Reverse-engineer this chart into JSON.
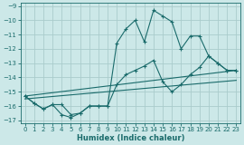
{
  "xlabel": "Humidex (Indice chaleur)",
  "bg_color": "#cce8e8",
  "line_color": "#1a6b6b",
  "grid_color": "#aacccc",
  "xlim": [
    -0.5,
    23.5
  ],
  "ylim": [
    -17.2,
    -8.8
  ],
  "yticks": [
    -17,
    -16,
    -15,
    -14,
    -13,
    -12,
    -11,
    -10,
    -9
  ],
  "xticks": [
    0,
    1,
    2,
    3,
    4,
    5,
    6,
    7,
    8,
    9,
    10,
    11,
    12,
    13,
    14,
    15,
    16,
    17,
    18,
    19,
    20,
    21,
    22,
    23
  ],
  "series": [
    {
      "x": [
        0,
        1,
        2,
        3,
        4,
        5,
        6,
        7,
        8,
        9,
        10,
        11,
        12,
        13,
        14,
        15,
        16,
        17,
        18,
        19,
        20,
        21,
        22,
        23
      ],
      "y": [
        -15.3,
        -15.8,
        -16.2,
        -15.9,
        -15.9,
        -16.6,
        -16.5,
        -16.0,
        -16.0,
        -16.0,
        -11.6,
        -10.6,
        -10.0,
        -11.5,
        -9.3,
        -9.7,
        -10.1,
        -12.0,
        -11.1,
        -11.1,
        -12.5,
        -13.0,
        -13.5,
        -13.5
      ]
    },
    {
      "x": [
        0,
        1,
        2,
        3,
        4,
        5,
        6,
        7,
        8,
        9,
        10,
        11,
        12,
        13,
        14,
        15,
        16,
        17,
        18,
        19,
        20,
        21,
        22,
        23
      ],
      "y": [
        -15.3,
        -15.8,
        -16.2,
        -15.9,
        -16.6,
        -16.8,
        -16.5,
        -16.0,
        -16.0,
        -16.0,
        -14.5,
        -13.8,
        -13.5,
        -13.2,
        -12.8,
        -14.3,
        -15.0,
        -14.5,
        -13.8,
        -13.3,
        -12.5,
        -13.0,
        -13.5,
        -13.5
      ]
    },
    {
      "x": [
        0,
        23
      ],
      "y": [
        -15.3,
        -13.5
      ]
    },
    {
      "x": [
        0,
        23
      ],
      "y": [
        -15.5,
        -14.2
      ]
    }
  ]
}
